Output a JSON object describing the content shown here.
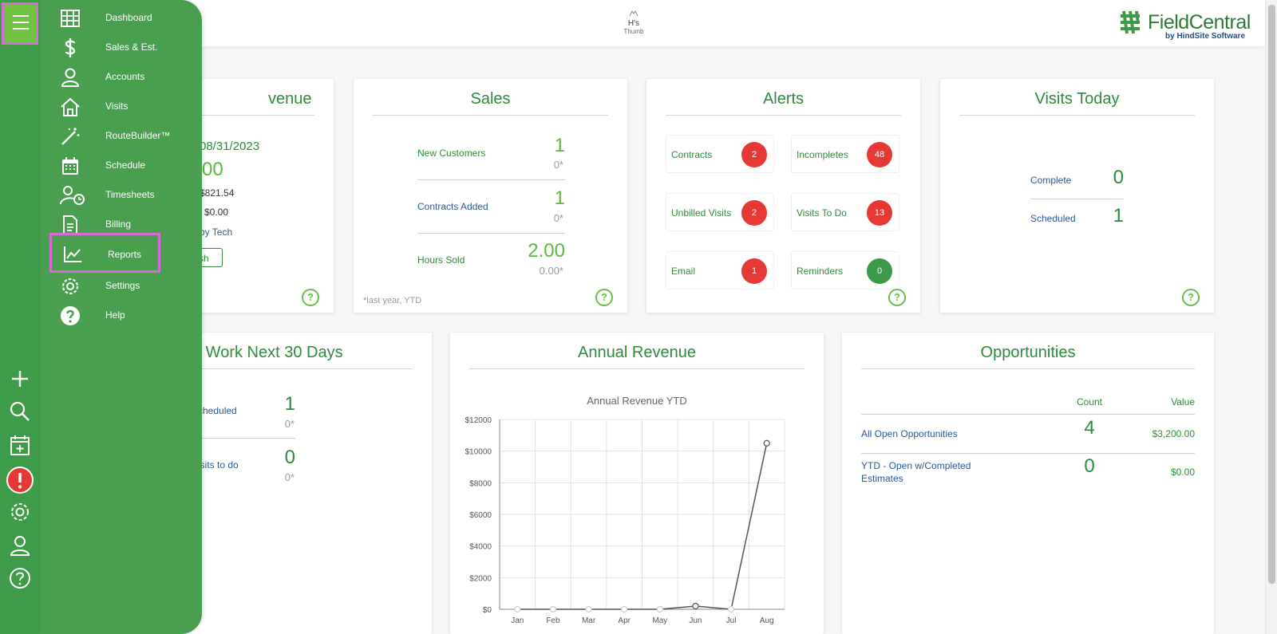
{
  "header": {
    "company_logo_line1": "H's",
    "company_logo_line2": "Thumb",
    "brand_name": "FieldCentral",
    "brand_sub": "by HindSite Software"
  },
  "nav": {
    "items": [
      {
        "label": "Dashboard",
        "icon": "grid-icon"
      },
      {
        "label": "Sales & Est.",
        "icon": "dollar-icon"
      },
      {
        "label": "Accounts",
        "icon": "person-icon"
      },
      {
        "label": "Visits",
        "icon": "home-icon"
      },
      {
        "label": "RouteBuilder™",
        "icon": "magic-wand-icon"
      },
      {
        "label": "Schedule",
        "icon": "calendar-icon"
      },
      {
        "label": "Timesheets",
        "icon": "person-clock-icon"
      },
      {
        "label": "Billing",
        "icon": "document-icon"
      },
      {
        "label": "Reports",
        "icon": "line-chart-icon"
      },
      {
        "label": "Settings",
        "icon": "gear-icon"
      },
      {
        "label": "Help",
        "icon": "help-circle-icon"
      }
    ]
  },
  "revenue": {
    "title_partial": "venue",
    "date_partial": "08/31/2023",
    "amount_partial": "00",
    "line1": "$821.54",
    "line2": "$0.00",
    "link": "by Tech",
    "refresh_partial": "sh"
  },
  "sales": {
    "title": "Sales",
    "rows": [
      {
        "label": "New Customers",
        "value": "1",
        "prior": "0*"
      },
      {
        "label": "Contracts Added",
        "value": "1",
        "prior": "0*"
      },
      {
        "label": "Hours Sold",
        "value": "2.00",
        "prior": "0.00*"
      }
    ],
    "footnote": "*last year, YTD"
  },
  "alerts": {
    "title": "Alerts",
    "items": [
      {
        "label": "Contracts",
        "count": "2"
      },
      {
        "label": "Incompletes",
        "count": "48"
      },
      {
        "label": "Unbilled Visits",
        "count": "2"
      },
      {
        "label": "Visits To Do",
        "count": "13"
      },
      {
        "label": "Email",
        "count": "1"
      },
      {
        "label": "Reminders",
        "count": "0"
      }
    ]
  },
  "visits_today": {
    "title": "Visits Today",
    "rows": [
      {
        "label": "Complete",
        "value": "0"
      },
      {
        "label": "Scheduled",
        "value": "1"
      }
    ]
  },
  "upcoming": {
    "title_partial": "g Work Next 30 Days",
    "rows": [
      {
        "label": "cheduled",
        "value": "1",
        "prior": "0*"
      },
      {
        "label": "isits to do",
        "value": "0",
        "prior": "0*"
      }
    ]
  },
  "annual_revenue": {
    "title": "Annual Revenue",
    "chart_title": "Annual Revenue YTD"
  },
  "chart_data": {
    "type": "line",
    "title": "Annual Revenue YTD",
    "categories": [
      "Jan",
      "Feb",
      "Mar",
      "Apr",
      "May",
      "Jun",
      "Jul",
      "Aug"
    ],
    "values": [
      0,
      0,
      0,
      0,
      0,
      200,
      0,
      10500
    ],
    "ylim": [
      0,
      12000
    ],
    "yticks": [
      "$0",
      "$2000",
      "$4000",
      "$6000",
      "$8000",
      "$10000",
      "$12000"
    ],
    "grid": true
  },
  "opportunities": {
    "title": "Opportunities",
    "col_count": "Count",
    "col_value": "Value",
    "rows": [
      {
        "label": "All Open Opportunities",
        "count": "4",
        "value": "$3,200.00"
      },
      {
        "label_line1": "YTD - Open w/Completed",
        "label_line2": "Estimates",
        "count": "0",
        "value": "$0.00"
      }
    ]
  },
  "colors": {
    "rail": "#3e9b48",
    "flyout": "#4a9f4f",
    "accent_green": "#2e8b3c",
    "highlight": "#d86bd8",
    "badge_red": "#e53935"
  }
}
